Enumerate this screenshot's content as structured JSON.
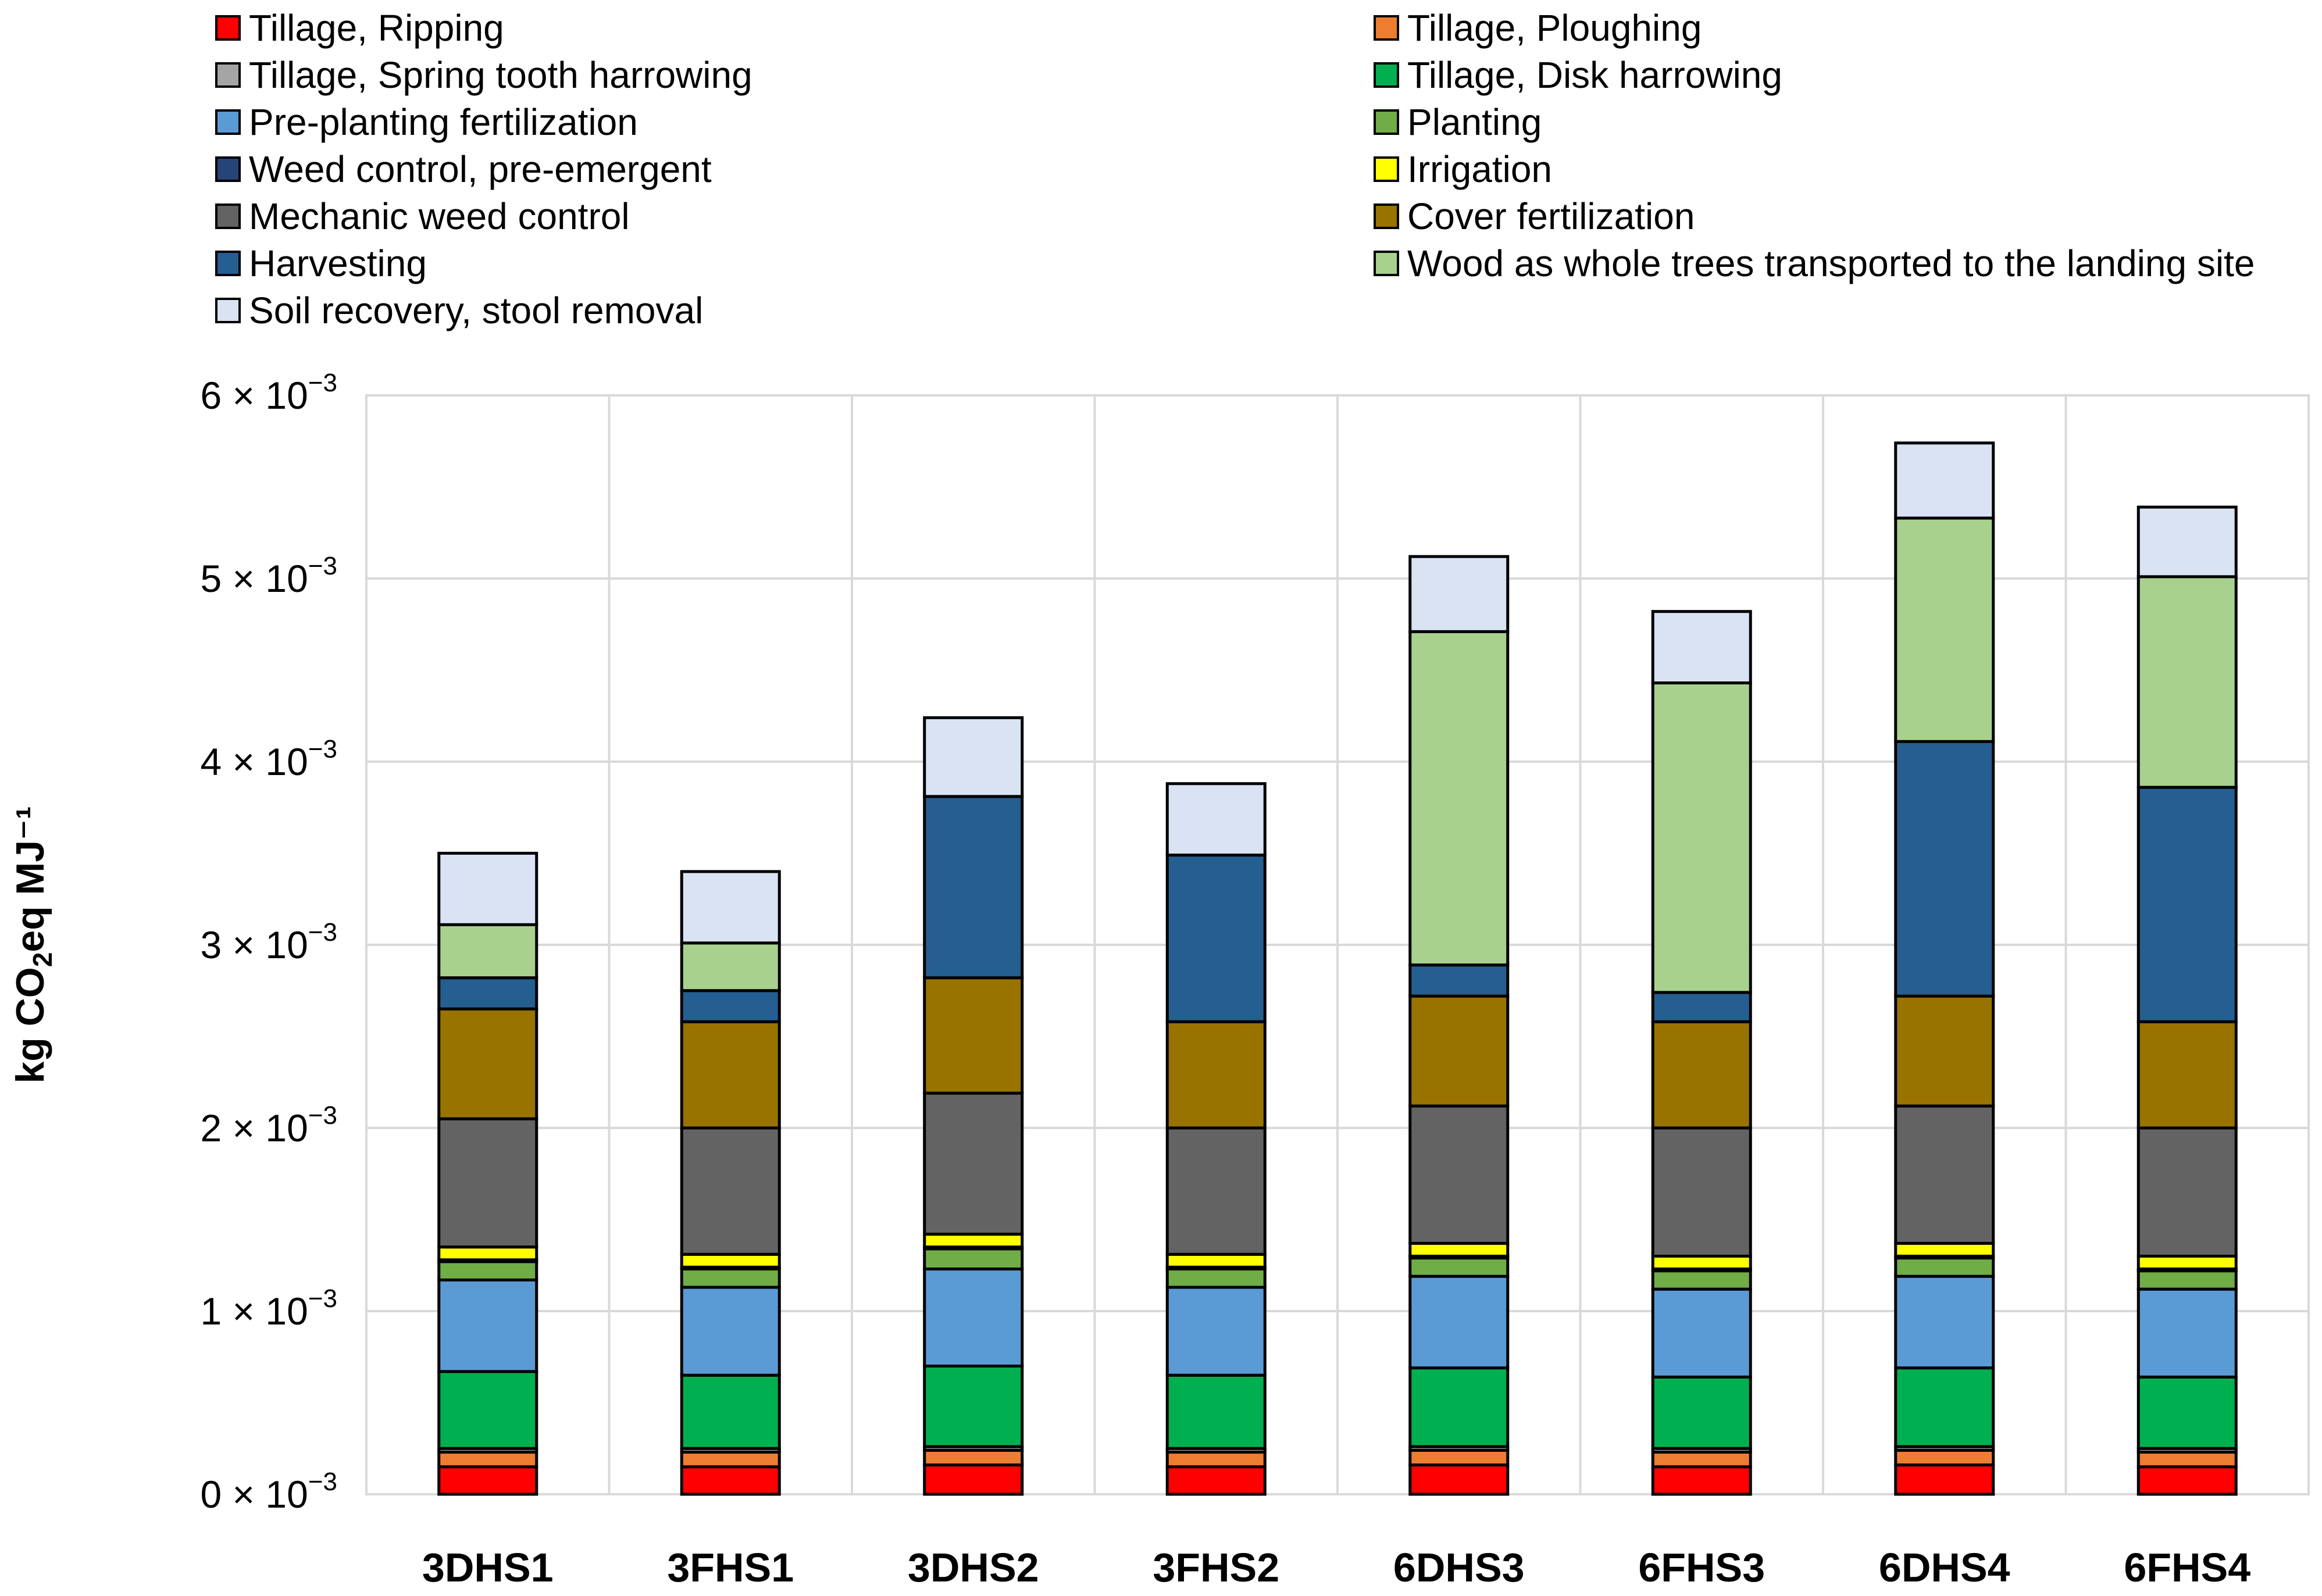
{
  "chart_data": {
    "type": "bar",
    "stacked": true,
    "title": "",
    "xlabel": "",
    "ylabel": "kg CO2eq MJ⁻¹",
    "ylabel_parts": {
      "pre": "kg CO",
      "sub": "2",
      "post": "eq MJ⁻¹"
    },
    "ylim": [
      0,
      0.006
    ],
    "yticks": [
      0,
      0.001,
      0.002,
      0.003,
      0.004,
      0.005,
      0.006
    ],
    "ytick_labels": [
      {
        "mant": "0",
        "exp": "−3"
      },
      {
        "mant": "1",
        "exp": "−3"
      },
      {
        "mant": "2",
        "exp": "−3"
      },
      {
        "mant": "3",
        "exp": "−3"
      },
      {
        "mant": "4",
        "exp": "−3"
      },
      {
        "mant": "5",
        "exp": "−3"
      },
      {
        "mant": "6",
        "exp": "−3"
      }
    ],
    "grid": true,
    "legend_position": "top",
    "categories": [
      "3DHS1",
      "3FHS1",
      "3DHS2",
      "3FHS2",
      "6DHS3",
      "6FHS3",
      "6DHS4",
      "6FHS4"
    ],
    "series": [
      {
        "name": "Tillage, Ripping",
        "color": "#ff0000",
        "values": [
          0.00015,
          0.00015,
          0.00016,
          0.00015,
          0.00016,
          0.00015,
          0.00016,
          0.00015
        ]
      },
      {
        "name": "Tillage, Ploughing",
        "color": "#ed7d31",
        "values": [
          8e-05,
          8e-05,
          8e-05,
          8e-05,
          8e-05,
          8e-05,
          8e-05,
          8e-05
        ]
      },
      {
        "name": "Tillage, Spring tooth harrowing",
        "color": "#a5a5a5",
        "values": [
          2e-05,
          2e-05,
          2e-05,
          2e-05,
          2e-05,
          2e-05,
          2e-05,
          2e-05
        ]
      },
      {
        "name": "Tillage, Disk harrowing",
        "color": "#00b050",
        "values": [
          0.00042,
          0.0004,
          0.00044,
          0.0004,
          0.00043,
          0.00039,
          0.00043,
          0.00039
        ]
      },
      {
        "name": "Pre-planting fertilization",
        "color": "#5b9bd5",
        "values": [
          0.0005,
          0.00048,
          0.00053,
          0.00048,
          0.0005,
          0.00048,
          0.0005,
          0.00048
        ]
      },
      {
        "name": "Planting",
        "color": "#70ad47",
        "values": [
          0.0001,
          0.0001,
          0.00011,
          0.0001,
          0.0001,
          0.0001,
          0.0001,
          0.0001
        ]
      },
      {
        "name": "Weed control, pre-emergent",
        "color": "#264478",
        "values": [
          1e-05,
          1e-05,
          1e-05,
          1e-05,
          1e-05,
          1e-05,
          1e-05,
          1e-05
        ]
      },
      {
        "name": "Irrigation",
        "color": "#ffff00",
        "values": [
          7e-05,
          7e-05,
          7e-05,
          7e-05,
          7e-05,
          7e-05,
          7e-05,
          7e-05
        ]
      },
      {
        "name": "Mechanic weed control",
        "color": "#636363",
        "values": [
          0.0007,
          0.00069,
          0.00077,
          0.00069,
          0.00075,
          0.0007,
          0.00075,
          0.0007
        ]
      },
      {
        "name": "Cover fertilization",
        "color": "#997300",
        "values": [
          0.0006,
          0.00058,
          0.00063,
          0.00058,
          0.0006,
          0.00058,
          0.0006,
          0.00058
        ]
      },
      {
        "name": "Harvesting",
        "color": "#255e91",
        "values": [
          0.00017,
          0.00017,
          0.00099,
          0.00091,
          0.00017,
          0.00016,
          0.00139,
          0.00128
        ]
      },
      {
        "name": "Wood as whole trees transported to the landing site",
        "color": "#a9d18e",
        "values": [
          0.00029,
          0.00026,
          0.0,
          0.0,
          0.00182,
          0.00169,
          0.00122,
          0.00115
        ]
      },
      {
        "name": "Soil recovery, stool removal",
        "color": "#dae3f3",
        "values": [
          0.00039,
          0.00039,
          0.00043,
          0.00039,
          0.00041,
          0.00039,
          0.00041,
          0.00038
        ]
      }
    ]
  },
  "legend": {
    "left": [
      "Tillage, Ripping",
      "Tillage, Spring tooth harrowing",
      "Pre-planting fertilization",
      "Weed control, pre-emergent",
      "Mechanic weed control",
      "Harvesting",
      "Soil recovery, stool removal"
    ],
    "right": [
      "Tillage, Ploughing",
      "Tillage, Disk harrowing",
      "Planting",
      "Irrigation",
      "Cover fertilization",
      "Wood as whole trees transported to the landing site"
    ]
  }
}
